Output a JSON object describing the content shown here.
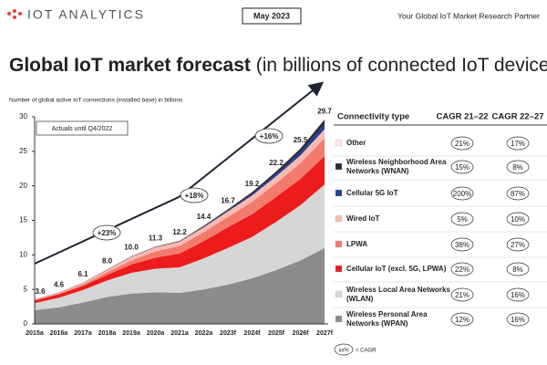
{
  "header": {
    "logo": "IOT ANALYTICS",
    "date": "May 2023",
    "tagline": "Your Global IoT Market Research Partner"
  },
  "chart_data": {
    "type": "stacked-area",
    "title": "Global IoT market forecast",
    "title_suffix": "(in billions of connected IoT devices)",
    "subtitle": "Number of global active IoT connections (installed base) in billions",
    "note": "Actuals until Q4/2022",
    "categories": [
      "2015a",
      "2016a",
      "2017a",
      "2018a",
      "2019a",
      "2020a",
      "2021a",
      "2022a",
      "2023f",
      "2024f",
      "2025f",
      "2026f",
      "2027f"
    ],
    "totals": [
      3.6,
      4.6,
      6.1,
      8.0,
      10.0,
      11.3,
      12.2,
      14.4,
      16.7,
      19.2,
      22.2,
      25.5,
      29.7
    ],
    "total_labels": [
      "3.6",
      "4.6",
      "6.1",
      "8.0",
      "10.0",
      "11.3",
      "12.2",
      "14.4",
      "16.7",
      "19.2",
      "22.2",
      "25.5",
      "29.7"
    ],
    "growth_labels": [
      "+23%",
      "+18%",
      "+16%"
    ],
    "ylim": [
      0,
      30
    ],
    "yticks": [
      0,
      5,
      10,
      15,
      20,
      25,
      30
    ],
    "grid": false,
    "series": [
      {
        "name": "Wireless Personal Area Networks (WPAN)",
        "color": "#8c8c8c",
        "values": [
          2.0,
          2.4,
          3.1,
          3.9,
          4.4,
          4.6,
          4.5,
          5.0,
          5.7,
          6.6,
          7.8,
          9.2,
          11.0
        ],
        "cagr_21_22": "12%",
        "cagr_22_27": "16%"
      },
      {
        "name": "Wireless Local Area Networks (WLAN)",
        "color": "#d6d6d6",
        "values": [
          1.0,
          1.4,
          1.8,
          2.4,
          3.0,
          3.4,
          3.7,
          4.5,
          5.3,
          6.0,
          7.0,
          8.0,
          9.2
        ],
        "cagr_21_22": "21%",
        "cagr_22_27": "16%"
      },
      {
        "name": "Cellular IoT (excl. 5G, LPWA)",
        "color": "#ec1c1c",
        "values": [
          0.4,
          0.5,
          0.6,
          0.8,
          1.2,
          1.6,
          2.0,
          2.5,
          3.0,
          3.3,
          3.6,
          3.8,
          4.1
        ],
        "cagr_21_22": "22%",
        "cagr_22_27": "8%"
      },
      {
        "name": "LPWA",
        "color": "#f47a6e",
        "values": [
          0.05,
          0.1,
          0.2,
          0.4,
          0.6,
          0.9,
          1.1,
          1.3,
          1.5,
          1.8,
          2.0,
          2.3,
          2.6
        ],
        "cagr_21_22": "38%",
        "cagr_22_27": "27%"
      },
      {
        "name": "Wired IoT",
        "color": "#f9bab2",
        "values": [
          0.1,
          0.1,
          0.2,
          0.3,
          0.5,
          0.6,
          0.6,
          0.7,
          0.8,
          0.9,
          1.0,
          1.1,
          1.3
        ],
        "cagr_21_22": "5%",
        "cagr_22_27": "10%"
      },
      {
        "name": "Cellular 5G IoT",
        "color": "#1f3f99",
        "values": [
          0,
          0,
          0,
          0,
          0,
          0,
          0.01,
          0.05,
          0.1,
          0.2,
          0.3,
          0.5,
          0.7
        ],
        "cagr_21_22": "200%",
        "cagr_22_27": "87%"
      },
      {
        "name": "Wireless Neighborhood Area Networks (WNAN)",
        "color": "#2b2b3b",
        "values": [
          0.03,
          0.04,
          0.05,
          0.06,
          0.07,
          0.08,
          0.1,
          0.15,
          0.2,
          0.3,
          0.4,
          0.5,
          0.7
        ],
        "cagr_21_22": "15%",
        "cagr_22_27": "8%"
      },
      {
        "name": "Other",
        "color": "#fde3e3",
        "values": [
          0.02,
          0.06,
          0.15,
          0.14,
          0.23,
          0.12,
          0.19,
          0.2,
          0.1,
          0.1,
          0.1,
          0.1,
          0.1
        ],
        "cagr_21_22": "21%",
        "cagr_22_27": "17%"
      }
    ],
    "table_headers": [
      "Connectivity type",
      "CAGR 21–22",
      "CAGR 22–27"
    ],
    "cagr_key": {
      "symbol": "xx%",
      "text": "= CAGR"
    }
  }
}
